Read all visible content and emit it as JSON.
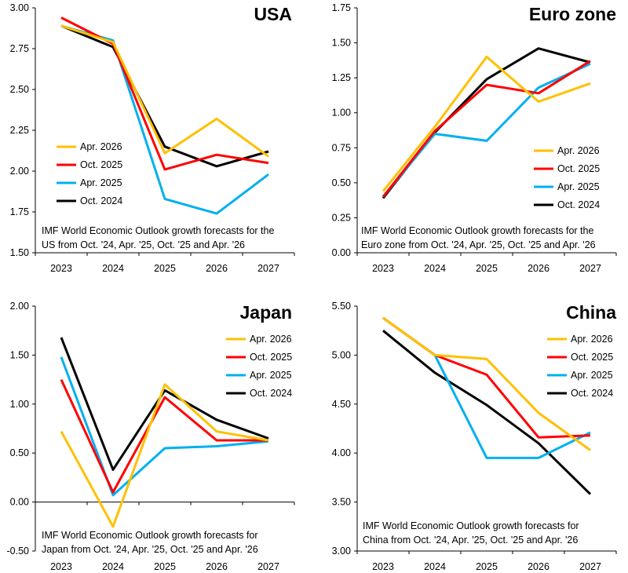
{
  "chart_data": [
    {
      "type": "line",
      "title": "USA",
      "categories": [
        "2023",
        "2024",
        "2025",
        "2026",
        "2027"
      ],
      "ylim": [
        1.5,
        3.0
      ],
      "yticks": [
        "3.00",
        "2.75",
        "2.50",
        "2.25",
        "2.00",
        "1.75",
        "1.50"
      ],
      "ytick_values": [
        3.0,
        2.75,
        2.5,
        2.25,
        2.0,
        1.75,
        1.5
      ],
      "legend_position": "left",
      "series": [
        {
          "name": "Apr. 2026",
          "color": "#FFC000",
          "values": [
            2.89,
            2.79,
            2.11,
            2.32,
            2.09
          ]
        },
        {
          "name": "Oct. 2025",
          "color": "#FF0000",
          "values": [
            2.94,
            2.78,
            2.01,
            2.1,
            2.05
          ]
        },
        {
          "name": "Apr. 2025",
          "color": "#00B0F0",
          "values": [
            2.89,
            2.8,
            1.83,
            1.74,
            1.98
          ]
        },
        {
          "name": "Oct. 2024",
          "color": "#000000",
          "values": [
            2.89,
            2.76,
            2.15,
            2.03,
            2.12
          ]
        }
      ],
      "note_lines": [
        "IMF World Economic Outlook growth forecasts for the",
        "US from Oct. '24, Apr. '25, Oct. '25 and Apr. '26"
      ]
    },
    {
      "type": "line",
      "title": "Euro zone",
      "categories": [
        "2023",
        "2024",
        "2025",
        "2026",
        "2027"
      ],
      "ylim": [
        0.0,
        1.75
      ],
      "yticks": [
        "1.75",
        "1.50",
        "1.25",
        "1.00",
        "0.75",
        "0.50",
        "0.25",
        "0.00"
      ],
      "ytick_values": [
        1.75,
        1.5,
        1.25,
        1.0,
        0.75,
        0.5,
        0.25,
        0.0
      ],
      "legend_position": "right",
      "series": [
        {
          "name": "Apr. 2026",
          "color": "#FFC000",
          "values": [
            0.44,
            0.9,
            1.4,
            1.08,
            1.21
          ]
        },
        {
          "name": "Oct. 2025",
          "color": "#FF0000",
          "values": [
            0.4,
            0.87,
            1.2,
            1.14,
            1.37
          ]
        },
        {
          "name": "Apr. 2025",
          "color": "#00B0F0",
          "values": [
            0.4,
            0.85,
            0.8,
            1.18,
            1.35
          ]
        },
        {
          "name": "Oct. 2024",
          "color": "#000000",
          "values": [
            0.39,
            0.86,
            1.24,
            1.46,
            1.36
          ]
        }
      ],
      "note_lines": [
        "IMF World Economic Outlook growth forecasts for the",
        "Euro zone from Oct. '24, Apr. '25, Oct. '25 and Apr. '26"
      ]
    },
    {
      "type": "line",
      "title": "Japan",
      "categories": [
        "2023",
        "2024",
        "2025",
        "2026",
        "2027"
      ],
      "ylim": [
        -0.5,
        2.0
      ],
      "yticks": [
        "2.00",
        "1.50",
        "1.00",
        "0.50",
        "0.00",
        "-0.50"
      ],
      "ytick_values": [
        2.0,
        1.5,
        1.0,
        0.5,
        0.0,
        -0.5
      ],
      "legend_position": "right",
      "series": [
        {
          "name": "Apr. 2026",
          "color": "#FFC000",
          "values": [
            0.72,
            -0.25,
            1.2,
            0.72,
            0.63
          ]
        },
        {
          "name": "Oct. 2025",
          "color": "#FF0000",
          "values": [
            1.25,
            0.1,
            1.07,
            0.63,
            0.63
          ]
        },
        {
          "name": "Apr. 2025",
          "color": "#00B0F0",
          "values": [
            1.48,
            0.07,
            0.55,
            0.57,
            0.62
          ]
        },
        {
          "name": "Oct. 2024",
          "color": "#000000",
          "values": [
            1.68,
            0.33,
            1.14,
            0.84,
            0.65
          ]
        }
      ],
      "note_lines": [
        "IMF World Economic Outlook growth forecasts for",
        "Japan from Oct. '24, Apr. '25, Oct. '25 and Apr. '26"
      ]
    },
    {
      "type": "line",
      "title": "China",
      "categories": [
        "2023",
        "2024",
        "2025",
        "2026",
        "2027"
      ],
      "ylim": [
        3.0,
        5.5
      ],
      "yticks": [
        "5.50",
        "5.00",
        "4.50",
        "4.00",
        "3.50",
        "3.00"
      ],
      "ytick_values": [
        5.5,
        5.0,
        4.5,
        4.0,
        3.5,
        3.0
      ],
      "legend_position": "right",
      "series": [
        {
          "name": "Apr. 2026",
          "color": "#FFC000",
          "values": [
            5.38,
            5.0,
            4.96,
            4.41,
            4.03
          ]
        },
        {
          "name": "Oct. 2025",
          "color": "#FF0000",
          "values": [
            5.38,
            5.0,
            4.8,
            4.16,
            4.18
          ]
        },
        {
          "name": "Apr. 2025",
          "color": "#00B0F0",
          "values": [
            5.38,
            5.0,
            3.95,
            3.95,
            4.21
          ]
        },
        {
          "name": "Oct. 2024",
          "color": "#000000",
          "values": [
            5.25,
            4.82,
            4.49,
            4.1,
            3.58
          ]
        }
      ],
      "note_lines": [
        "IMF World Economic Outlook growth forecasts for",
        "China from Oct. '24, Apr. '25, Oct. '25 and Apr. '26"
      ]
    }
  ]
}
